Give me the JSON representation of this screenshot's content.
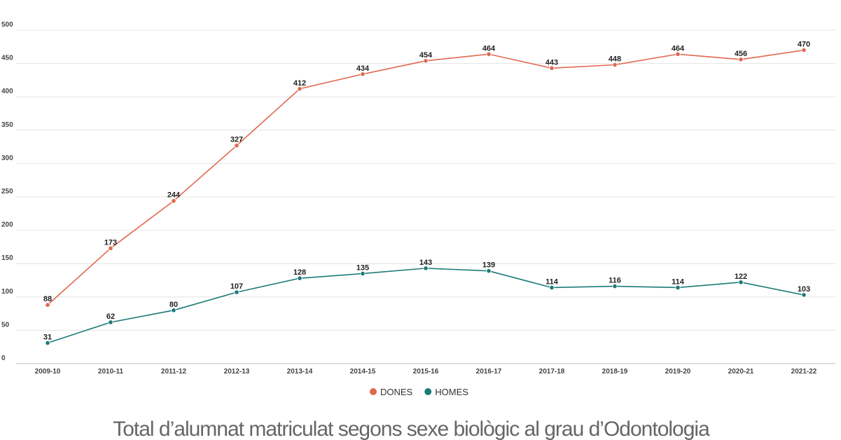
{
  "chart_data": {
    "type": "line",
    "caption": "Total d’alumnat matriculat segons sexe biològic al grau d’Odontologia",
    "categories": [
      "2009-10",
      "2010-11",
      "2011-12",
      "2012-13",
      "2013-14",
      "2014-15",
      "2015-16",
      "2016-17",
      "2017-18",
      "2018-19",
      "2019-20",
      "2020-21",
      "2021-22"
    ],
    "series": [
      {
        "name": "DONES",
        "color": "#e0694e",
        "values": [
          88,
          173,
          244,
          327,
          412,
          434,
          454,
          464,
          443,
          448,
          464,
          456,
          470
        ]
      },
      {
        "name": "HOMES",
        "color": "#1b7b78",
        "values": [
          31,
          62,
          80,
          107,
          128,
          135,
          143,
          139,
          114,
          116,
          114,
          122,
          103
        ]
      }
    ],
    "ylim": [
      0,
      500
    ],
    "yticks": [
      0,
      50,
      100,
      150,
      200,
      250,
      300,
      350,
      400,
      450,
      500
    ],
    "grid": true,
    "legend": "bottom"
  }
}
